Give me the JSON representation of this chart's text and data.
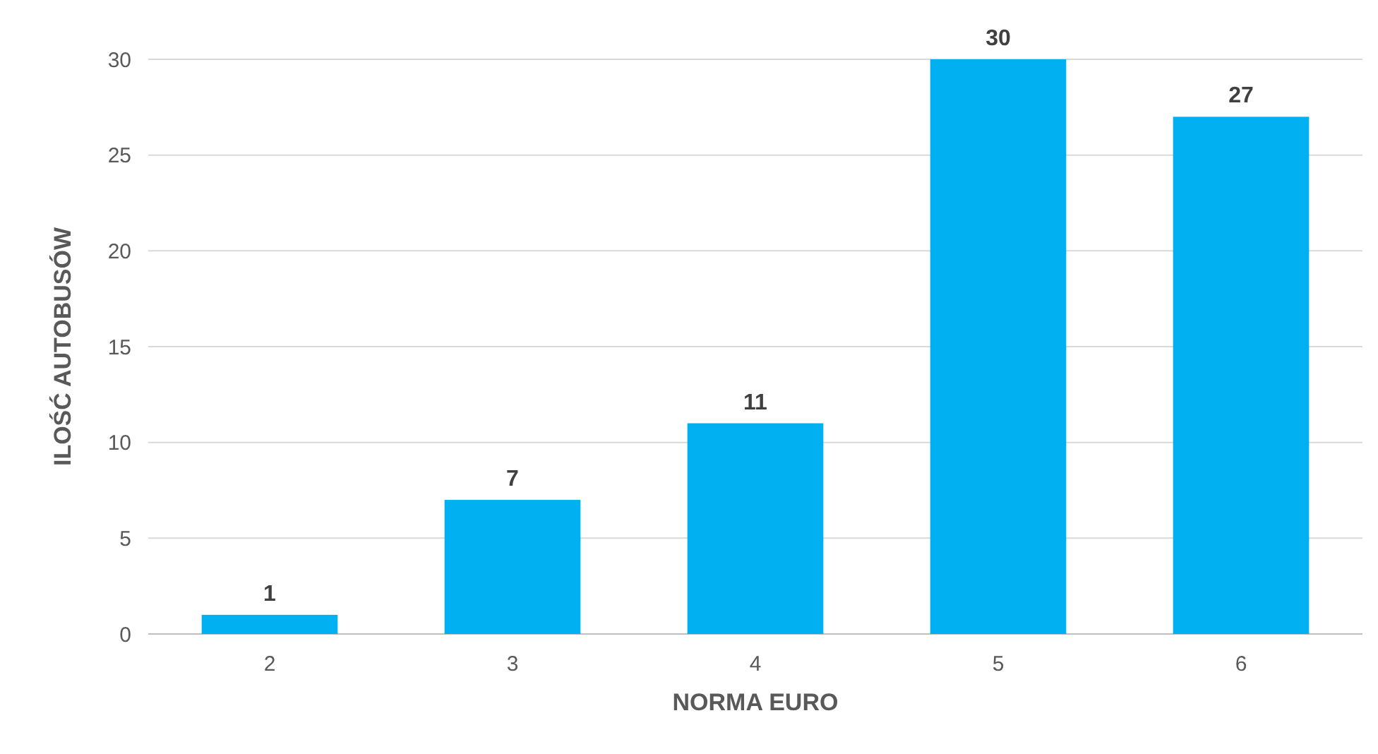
{
  "chart_data": {
    "type": "bar",
    "xlabel": "NORMA EURO",
    "ylabel": "ILOŚĆ AUTOBUSÓW",
    "categories": [
      "2",
      "3",
      "4",
      "5",
      "6"
    ],
    "values": [
      1,
      7,
      11,
      30,
      27
    ],
    "color": "#00b0f0",
    "ylim": [
      0,
      30
    ],
    "yticks": [
      0,
      5,
      10,
      15,
      20,
      25,
      30
    ],
    "grid": "y",
    "data_labels": true
  }
}
